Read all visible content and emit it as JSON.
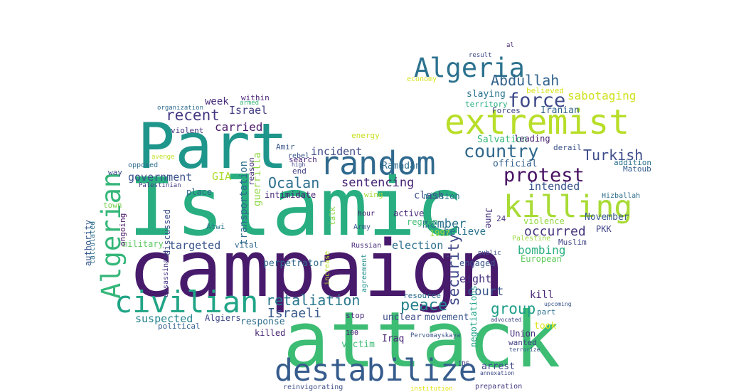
{
  "palette": {
    "dark_purple": "#440154",
    "indigo": "#3b528b",
    "teal": "#21918c",
    "green": "#3dbc74",
    "lime": "#bddf26",
    "yellow": "#fde725"
  },
  "words": [
    {
      "text": "attack",
      "color": "#3dbc74"
    },
    {
      "text": "campaign",
      "color": "#481a6c"
    },
    {
      "text": "Islamic",
      "color": "#28ae80"
    },
    {
      "text": "Part",
      "color": "#1f968b"
    },
    {
      "text": "extremist",
      "color": "#b8de29"
    },
    {
      "text": "destabilize",
      "color": "#365c8d"
    },
    {
      "text": "random",
      "color": "#30698e"
    },
    {
      "text": "killing",
      "color": "#a8db34"
    },
    {
      "text": "civilian",
      "color": "#20a486"
    },
    {
      "text": "Algeria",
      "color": "#2c728e"
    },
    {
      "text": "Algerian",
      "color": "#35b779"
    },
    {
      "text": "country",
      "color": "#31688e"
    },
    {
      "text": "protest",
      "color": "#471063"
    },
    {
      "text": "force",
      "color": "#3e4a89"
    },
    {
      "text": "Abdullah",
      "color": "#33638d"
    },
    {
      "text": "security",
      "color": "#3f4889"
    },
    {
      "text": "retaliation",
      "color": "#2a788e"
    },
    {
      "text": "peace",
      "color": "#26828e"
    },
    {
      "text": "group",
      "color": "#1f9e89"
    },
    {
      "text": "recent",
      "color": "#453781"
    },
    {
      "text": "Turkish",
      "color": "#3e4c8a"
    },
    {
      "text": "occurred",
      "color": "#46337e"
    },
    {
      "text": "suspected",
      "color": "#25848e"
    },
    {
      "text": "Israeli",
      "color": "#38598c"
    },
    {
      "text": "Ocalan",
      "color": "#2d708e"
    },
    {
      "text": "sentencing",
      "color": "#482576"
    },
    {
      "text": "government",
      "color": "#3b528b"
    },
    {
      "text": "member",
      "color": "#2c738e"
    },
    {
      "text": "court",
      "color": "#39568c"
    },
    {
      "text": "bombing",
      "color": "#29af7f"
    },
    {
      "text": "intended",
      "color": "#39558c"
    },
    {
      "text": "sabotaging",
      "color": "#d0e11c"
    },
    {
      "text": "carried",
      "color": "#481769"
    },
    {
      "text": "Israel",
      "color": "#433e85"
    },
    {
      "text": "incident",
      "color": "#3e4989"
    },
    {
      "text": "Ramadan",
      "color": "#2e6f8e"
    },
    {
      "text": "GIA",
      "color": "#addc30"
    },
    {
      "text": "week",
      "color": "#472c7a"
    },
    {
      "text": "official",
      "color": "#34618d"
    },
    {
      "text": "Salvation",
      "color": "#37b878"
    },
    {
      "text": "slaying",
      "color": "#2b758e"
    },
    {
      "text": "Iranian",
      "color": "#33638d"
    },
    {
      "text": "territory",
      "color": "#27ad81"
    },
    {
      "text": "believed",
      "color": "#d8e219"
    },
    {
      "text": "Forces",
      "color": "#3f4788"
    },
    {
      "text": "guerrilla",
      "color": "#90d743"
    },
    {
      "text": "transportation",
      "color": "#2f6c8e"
    },
    {
      "text": "targeted",
      "color": "#3a548c"
    },
    {
      "text": "election",
      "color": "#2d708e"
    },
    {
      "text": "eight",
      "color": "#46307e"
    },
    {
      "text": "believe",
      "color": "#2b748e"
    },
    {
      "text": "violence",
      "color": "#95d840"
    },
    {
      "text": "November",
      "color": "#38598c"
    },
    {
      "text": "PKK",
      "color": "#404588"
    },
    {
      "text": "Muslim",
      "color": "#414487"
    },
    {
      "text": "took",
      "color": "#dde318"
    },
    {
      "text": "kill",
      "color": "#482576"
    },
    {
      "text": "European",
      "color": "#62cb5f"
    },
    {
      "text": "Palestine",
      "color": "#9bd93c"
    },
    {
      "text": "negotiations",
      "color": "#1fa287"
    },
    {
      "text": "Union",
      "color": "#472c7a"
    },
    {
      "text": "wanted",
      "color": "#423f85"
    },
    {
      "text": "arrest",
      "color": "#3f4889"
    },
    {
      "text": "movement",
      "color": "#3a548c"
    },
    {
      "text": "victim",
      "color": "#3dbc74"
    },
    {
      "text": "Iraq",
      "color": "#482173"
    },
    {
      "text": "unclear",
      "color": "#3e4c8a"
    },
    {
      "text": "response",
      "color": "#2e6e8e"
    },
    {
      "text": "Algiers",
      "color": "#3f4889"
    },
    {
      "text": "killed",
      "color": "#482576"
    },
    {
      "text": "political",
      "color": "#355f8d"
    },
    {
      "text": "reinvigorating",
      "color": "#3d4e8a"
    },
    {
      "text": "preparation",
      "color": "#453882"
    },
    {
      "text": "perpetrator",
      "color": "#31688e"
    },
    {
      "text": "intimidate",
      "color": "#482475"
    },
    {
      "text": "clash",
      "color": "#3d4d8a"
    },
    {
      "text": "mission",
      "color": "#2d708e"
    },
    {
      "text": "region",
      "color": "#3dbc74"
    },
    {
      "text": "active",
      "color": "#482878"
    },
    {
      "text": "1997",
      "color": "#9dd93b"
    },
    {
      "text": "engaged",
      "color": "#3a548c"
    },
    {
      "text": "June",
      "color": "#46327e"
    },
    {
      "text": "24",
      "color": "#46337e"
    },
    {
      "text": "Hizballah",
      "color": "#2e6f8e"
    },
    {
      "text": "Matoub",
      "color": "#355e8d"
    },
    {
      "text": "addition",
      "color": "#2d718e"
    },
    {
      "text": "leading",
      "color": "#482071"
    },
    {
      "text": "derail",
      "color": "#3b528b"
    },
    {
      "text": "part",
      "color": "#2c728e"
    },
    {
      "text": "place",
      "color": "#30698e"
    },
    {
      "text": "military",
      "color": "#5ec962"
    },
    {
      "text": "ongoing",
      "color": "#471164"
    },
    {
      "text": "authority",
      "color": "#38588c"
    },
    {
      "text": "calculated",
      "color": "#2d708e"
    },
    {
      "text": "discussed",
      "color": "#3d4e8a"
    },
    {
      "text": "Atwi",
      "color": "#2a788e"
    },
    {
      "text": "vital",
      "color": "#31688e"
    },
    {
      "text": "assassinate",
      "color": "#453581"
    },
    {
      "text": "town",
      "color": "#7ad151"
    },
    {
      "text": "way",
      "color": "#3e4c8a"
    },
    {
      "text": "opposed",
      "color": "#2e6e8e"
    },
    {
      "text": "avenge",
      "color": "#c2df23"
    },
    {
      "text": "violent",
      "color": "#472f7d"
    },
    {
      "text": "reason",
      "color": "#472d7b"
    },
    {
      "text": "end",
      "color": "#414287"
    },
    {
      "text": "search",
      "color": "#482576"
    },
    {
      "text": "rebel",
      "color": "#3a548c"
    },
    {
      "text": "Amir",
      "color": "#38588c"
    },
    {
      "text": "energy",
      "color": "#c8e020"
    },
    {
      "text": "wing",
      "color": "#a2da37"
    },
    {
      "text": "talk",
      "color": "#89d548"
    },
    {
      "text": "stop",
      "color": "#472d7b"
    },
    {
      "text": "hour",
      "color": "#482576"
    },
    {
      "text": "Army",
      "color": "#3a548c"
    },
    {
      "text": "Russian",
      "color": "#472c7a"
    },
    {
      "text": "agreement",
      "color": "#21918c"
    },
    {
      "text": "increase",
      "color": "#b5de2b"
    },
    {
      "text": "resource",
      "color": "#2e6f8e"
    },
    {
      "text": "100",
      "color": "#482475"
    },
    {
      "text": "within",
      "color": "#482475"
    },
    {
      "text": "armed",
      "color": "#37b878"
    },
    {
      "text": "organization",
      "color": "#2f6c8e"
    },
    {
      "text": "Palestinian",
      "color": "#424086"
    },
    {
      "text": "economy",
      "color": "#d5e21a"
    },
    {
      "text": "result",
      "color": "#3e4a89"
    },
    {
      "text": "al",
      "color": "#482878"
    },
    {
      "text": "public",
      "color": "#3e4c8a"
    },
    {
      "text": "high",
      "color": "#3f4788"
    },
    {
      "text": "Pervomayskaya",
      "color": "#3b528b"
    },
    {
      "text": "institution",
      "color": "#e7e419"
    },
    {
      "text": "IDF",
      "color": "#414487"
    },
    {
      "text": "annexation",
      "color": "#3e4a89"
    },
    {
      "text": "upcoming",
      "color": "#3a548c"
    },
    {
      "text": "advocated",
      "color": "#404688"
    },
    {
      "text": "terrorize",
      "color": "#3b528b"
    }
  ]
}
